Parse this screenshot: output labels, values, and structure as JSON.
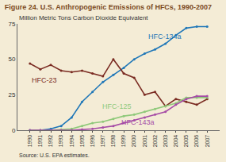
{
  "chart_data": {
    "type": "line",
    "title": "Figure 24. U.S. Anthropogenic Emissions of HFCs, 1990-2007",
    "ylabel": "Million Metric Tons Carbon Dioxide Equivalent",
    "annotations": [
      "Source: U.S. EPA estimates."
    ],
    "categories": [
      "1990",
      "1991",
      "1992",
      "1993",
      "1994",
      "1995",
      "1996",
      "1997",
      "1998",
      "1999",
      "2000",
      "2001",
      "2002",
      "2003",
      "2004",
      "2005",
      "2006",
      "2007"
    ],
    "series": [
      {
        "name": "HFC-134a",
        "color": "#1f77b8",
        "values": [
          0,
          0,
          1,
          3,
          9,
          20,
          27,
          34,
          39,
          44,
          50,
          54,
          57,
          61,
          67,
          72,
          73,
          73
        ]
      },
      {
        "name": "HFC-23",
        "color": "#7a2b22",
        "values": [
          47,
          43,
          46,
          42,
          41,
          42,
          40,
          38,
          50,
          40,
          37,
          25,
          27,
          17,
          22,
          20,
          18,
          22
        ]
      },
      {
        "name": "HFC-125",
        "color": "#8fc97a",
        "values": [
          0,
          0,
          0,
          0.5,
          1,
          3,
          5,
          6,
          8,
          10,
          11,
          13,
          15,
          17,
          19,
          23,
          23,
          23
        ]
      },
      {
        "name": "HFC-143a",
        "color": "#a64ca6",
        "values": [
          0,
          0,
          0,
          0,
          0,
          0.5,
          1,
          2,
          3,
          5,
          7,
          9,
          11,
          13,
          18,
          22,
          24,
          24
        ]
      }
    ],
    "ylim": [
      0,
      75
    ],
    "yticks": [
      0,
      25,
      50,
      75
    ],
    "grid": false,
    "marker": "circle"
  }
}
